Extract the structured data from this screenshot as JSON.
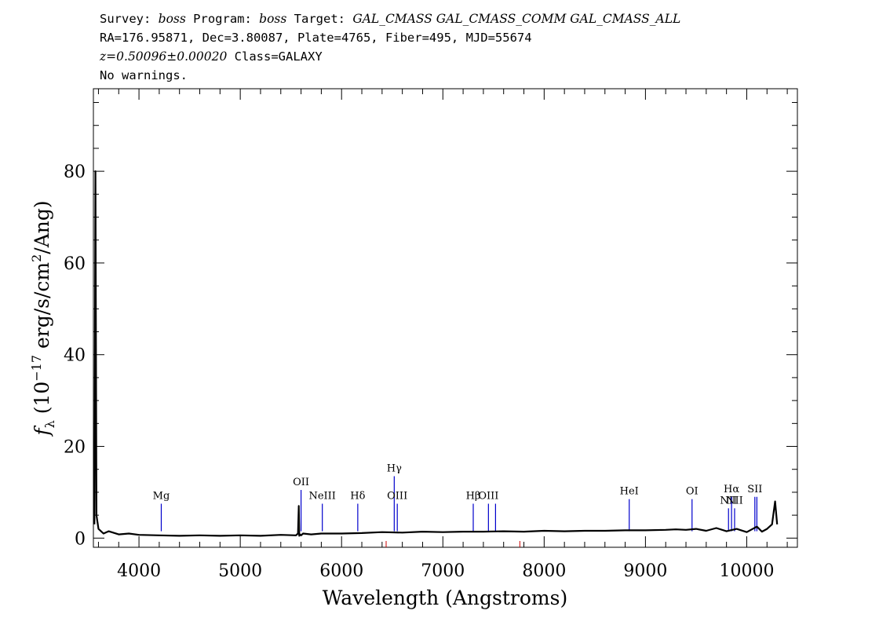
{
  "header": {
    "line1": {
      "survey_label": "Survey: ",
      "survey": "boss",
      "program_label": " Program: ",
      "program": "boss",
      "target_label": " Target: ",
      "target": "GAL_CMASS GAL_CMASS_COMM GAL_CMASS_ALL"
    },
    "line2": "RA=176.95871, Dec=3.80087, Plate=4765, Fiber=495, MJD=55674",
    "line3": {
      "z": "z=0.50096±0.00020",
      "class": " Class=GALAXY"
    },
    "line4": "No warnings."
  },
  "chart_data": {
    "type": "line",
    "xlabel": "Wavelength (Angstroms)",
    "ylabel": {
      "f": "f",
      "sub": "λ",
      "open": " (10",
      "exp": "−17",
      "mid": " erg/s/cm",
      "sq": "2",
      "close": "/Ang)"
    },
    "xlim": [
      3550,
      10500
    ],
    "ylim": [
      -2,
      98
    ],
    "xticks": [
      4000,
      5000,
      6000,
      7000,
      8000,
      9000,
      10000
    ],
    "yticks": [
      0,
      20,
      40,
      60,
      80
    ],
    "series": [
      {
        "color": "#000000",
        "x": [
          3560,
          3570,
          3580,
          3600,
          3650,
          3700,
          3800,
          3900,
          4000,
          4200,
          4400,
          4600,
          4800,
          5000,
          5200,
          5400,
          5550,
          5570,
          5578,
          5582,
          5590,
          5600,
          5620,
          5700,
          5800,
          6000,
          6200,
          6400,
          6600,
          6800,
          7000,
          7200,
          7400,
          7600,
          7800,
          8000,
          8200,
          8400,
          8600,
          8800,
          9000,
          9200,
          9300,
          9400,
          9500,
          9600,
          9700,
          9800,
          9900,
          10000,
          10100,
          10150,
          10200,
          10250,
          10280,
          10300
        ],
        "y": [
          3,
          80,
          5,
          2,
          1,
          1.5,
          0.8,
          1,
          0.7,
          0.6,
          0.5,
          0.6,
          0.5,
          0.6,
          0.5,
          0.7,
          0.6,
          1.0,
          7.0,
          0.5,
          0.8,
          0.6,
          1.0,
          0.8,
          1.0,
          1.0,
          1.1,
          1.3,
          1.2,
          1.4,
          1.3,
          1.4,
          1.4,
          1.5,
          1.4,
          1.6,
          1.5,
          1.6,
          1.6,
          1.7,
          1.7,
          1.8,
          1.9,
          1.8,
          2.0,
          1.6,
          2.2,
          1.5,
          2.0,
          1.3,
          2.5,
          1.4,
          2.0,
          3.0,
          8.0,
          3.0
        ]
      }
    ],
    "annotations": [
      {
        "label": "Mg",
        "x": 4220,
        "top": 7.5
      },
      {
        "label": "OII",
        "x": 5600,
        "top": 10.5
      },
      {
        "label": "NeIII",
        "x": 5810,
        "top": 7.5
      },
      {
        "label": "Hδ",
        "x": 6160,
        "top": 7.5
      },
      {
        "label": "Hγ",
        "x": 6520,
        "top": 13.5
      },
      {
        "label": "OIII",
        "x": 6550,
        "top": 7.5
      },
      {
        "label": "Hβ",
        "x": 7300,
        "top": 7.5
      },
      {
        "label": "OIII",
        "x": 7450,
        "top": 7.5
      },
      {
        "label": "",
        "x": 7520,
        "top": 7.5
      },
      {
        "label": "HeI",
        "x": 8840,
        "top": 8.5
      },
      {
        "label": "OI",
        "x": 9460,
        "top": 8.5
      },
      {
        "label": "NII",
        "x": 9820,
        "top": 6.5
      },
      {
        "label": "Hα",
        "x": 9850,
        "top": 9.0
      },
      {
        "label": "NII",
        "x": 9880,
        "top": 6.5
      },
      {
        "label": "SII",
        "x": 10080,
        "top": 9.0
      },
      {
        "label": "",
        "x": 10100,
        "top": 9.0
      }
    ],
    "line_color": "#0000cc",
    "sky_marks": [
      6440,
      7760
    ],
    "sky_mark_color": "#cc0000"
  }
}
